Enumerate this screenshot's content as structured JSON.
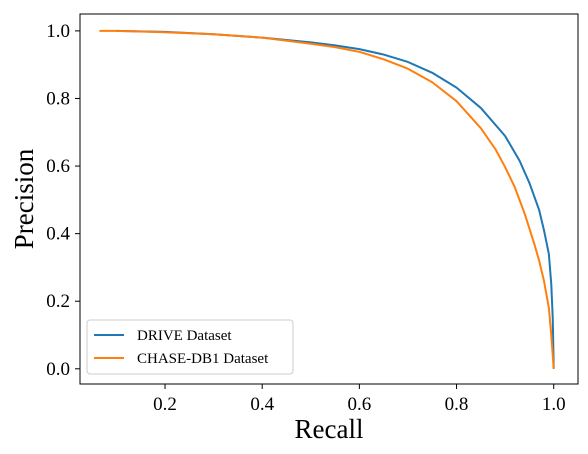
{
  "chart_data": {
    "type": "line",
    "title": "",
    "xlabel": "Recall",
    "ylabel": "Precision",
    "xlim": [
      0.025,
      1.05
    ],
    "ylim": [
      -0.045,
      1.05
    ],
    "xticks": [
      0.2,
      0.4,
      0.6,
      0.8,
      1.0
    ],
    "xtick_labels": [
      "0.2",
      "0.4",
      "0.6",
      "0.8",
      "1.0"
    ],
    "yticks": [
      0.0,
      0.2,
      0.4,
      0.6,
      0.8,
      1.0
    ],
    "ytick_labels": [
      "0.0",
      "0.2",
      "0.4",
      "0.6",
      "0.8",
      "1.0"
    ],
    "grid": false,
    "legend_position": "lower-left",
    "series": [
      {
        "name": "DRIVE Dataset",
        "color": "#1f77b4",
        "x": [
          0.1,
          0.2,
          0.3,
          0.4,
          0.5,
          0.55,
          0.6,
          0.65,
          0.7,
          0.75,
          0.8,
          0.85,
          0.9,
          0.93,
          0.95,
          0.97,
          0.98,
          0.99,
          0.995,
          0.998,
          1.0
        ],
        "y": [
          1.0,
          0.997,
          0.99,
          0.98,
          0.966,
          0.957,
          0.946,
          0.93,
          0.908,
          0.876,
          0.832,
          0.772,
          0.689,
          0.615,
          0.55,
          0.47,
          0.41,
          0.34,
          0.25,
          0.15,
          0.0
        ]
      },
      {
        "name": "CHASE-DB1 Dataset",
        "color": "#ff7f0e",
        "x": [
          0.065,
          0.1,
          0.2,
          0.3,
          0.4,
          0.5,
          0.55,
          0.6,
          0.65,
          0.7,
          0.75,
          0.8,
          0.85,
          0.88,
          0.9,
          0.92,
          0.94,
          0.96,
          0.97,
          0.98,
          0.99,
          0.995,
          1.0
        ],
        "y": [
          1.0,
          1.0,
          0.996,
          0.99,
          0.98,
          0.962,
          0.952,
          0.938,
          0.916,
          0.888,
          0.848,
          0.792,
          0.712,
          0.65,
          0.597,
          0.537,
          0.46,
          0.37,
          0.32,
          0.26,
          0.18,
          0.1,
          0.0
        ]
      }
    ]
  }
}
